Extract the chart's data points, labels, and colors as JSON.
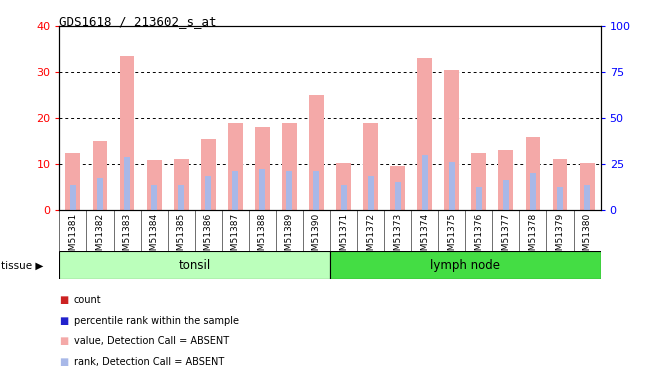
{
  "title": "GDS1618 / 213602_s_at",
  "samples": [
    "GSM51381",
    "GSM51382",
    "GSM51383",
    "GSM51384",
    "GSM51385",
    "GSM51386",
    "GSM51387",
    "GSM51388",
    "GSM51389",
    "GSM51390",
    "GSM51371",
    "GSM51372",
    "GSM51373",
    "GSM51374",
    "GSM51375",
    "GSM51376",
    "GSM51377",
    "GSM51378",
    "GSM51379",
    "GSM51380"
  ],
  "absent_values": [
    12.5,
    15.0,
    33.5,
    10.8,
    11.0,
    15.5,
    19.0,
    18.0,
    19.0,
    25.0,
    10.2,
    19.0,
    9.5,
    33.0,
    30.5,
    12.5,
    13.0,
    15.8,
    11.2,
    10.2
  ],
  "absent_ranks": [
    5.5,
    7.0,
    11.5,
    5.5,
    5.5,
    7.5,
    8.5,
    9.0,
    8.5,
    8.5,
    5.5,
    7.5,
    6.0,
    12.0,
    10.5,
    5.0,
    6.5,
    8.0,
    5.0,
    5.5
  ],
  "tonsil_count": 10,
  "lymphnode_count": 10,
  "tonsil_label": "tonsil",
  "lymphnode_label": "lymph node",
  "tissue_label": "tissue",
  "ylim_left": [
    0,
    40
  ],
  "ylim_right": [
    0,
    100
  ],
  "yticks_left": [
    0,
    10,
    20,
    30,
    40
  ],
  "yticks_right": [
    0,
    25,
    50,
    75,
    100
  ],
  "bar_color_absent": "#f4a9a8",
  "rank_color_absent": "#a8b8e8",
  "legend_colors": [
    "#cc2222",
    "#2222cc",
    "#f4a9a8",
    "#a8b8e8"
  ],
  "legend_labels": [
    "count",
    "percentile rank within the sample",
    "value, Detection Call = ABSENT",
    "rank, Detection Call = ABSENT"
  ],
  "tonsil_color": "#bbffbb",
  "lymph_color": "#44dd44",
  "bar_width": 0.55,
  "rank_bar_width": 0.22
}
